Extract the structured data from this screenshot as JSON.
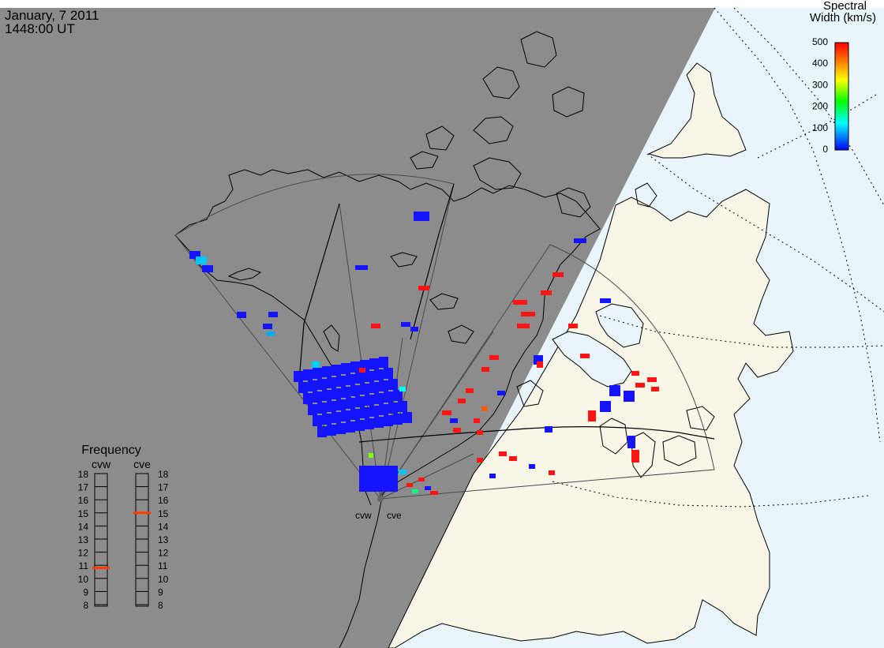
{
  "title": {
    "date": "January, 7 2011",
    "time": "1448:00 UT"
  },
  "colorbar": {
    "title_line1": "Spectral",
    "title_line2": "Width (km/s)",
    "ticks": [
      "500",
      "400",
      "300",
      "200",
      "100",
      "0"
    ],
    "colors": [
      "#0000ff",
      "#00ffff",
      "#00ff00",
      "#ffff00",
      "#ff0000"
    ]
  },
  "frequency_panel": {
    "title": "Frequency",
    "radars": [
      {
        "name": "cvw",
        "selected_mhz": 10.8
      },
      {
        "name": "cve",
        "selected_mhz": 15.0
      }
    ],
    "scale": [
      "18",
      "17",
      "16",
      "15",
      "14",
      "13",
      "12",
      "11",
      "10",
      "9",
      "8"
    ]
  },
  "sites": [
    {
      "label": "cvw"
    },
    {
      "label": "cve"
    }
  ],
  "colors": {
    "night": "#8c8c8c",
    "ocean_day": "#e8f6fc",
    "land_day": "#f8f6e6",
    "coast": "#000000",
    "fov": "#4a4a4a",
    "low_width": "#1414ff",
    "high_width": "#ff1414"
  }
}
